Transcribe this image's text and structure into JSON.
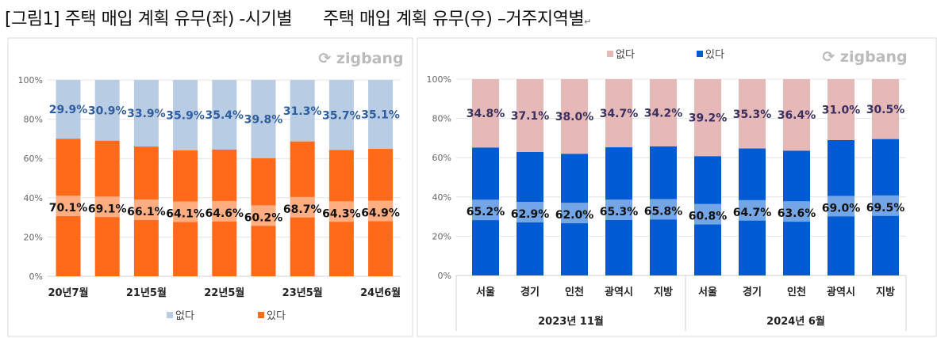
{
  "title": "[그림1] 주택 매입 계획 유무(좌) -시기별      주택 매입 계획 유무(우) –거주지역별",
  "title_mark": "↵",
  "chart_data": [
    {
      "type": "bar",
      "stacked": true,
      "percent": true,
      "watermark": "zigbang",
      "categories": [
        "20년7월",
        "",
        "21년5월",
        "",
        "22년5월",
        "",
        "23년5월",
        "",
        "24년6월"
      ],
      "series": [
        {
          "name": "있다",
          "color": "#ff6a1a",
          "label_color": "#111111",
          "values": [
            70.1,
            69.1,
            66.1,
            64.1,
            64.6,
            60.2,
            68.7,
            64.3,
            64.9
          ]
        },
        {
          "name": "없다",
          "color": "#b8cce4",
          "label_color": "#2e5d9f",
          "values": [
            29.9,
            30.9,
            33.9,
            35.9,
            35.4,
            39.8,
            31.3,
            35.7,
            35.1
          ]
        }
      ],
      "yticks": [
        "0%",
        "20%",
        "40%",
        "60%",
        "80%",
        "100%"
      ],
      "ylim": [
        0,
        100
      ],
      "grid": true,
      "legend": "bottom"
    },
    {
      "type": "bar",
      "stacked": true,
      "percent": true,
      "watermark": "zigbang",
      "categories": [
        "서울",
        "경기",
        "인천",
        "광역시",
        "지방",
        "서울",
        "경기",
        "인천",
        "광역시",
        "지방"
      ],
      "groups": [
        {
          "label": "2023년 11월",
          "count": 5
        },
        {
          "label": "2024년 6월",
          "count": 5
        }
      ],
      "series": [
        {
          "name": "있다",
          "color": "#005bd3",
          "label_color": "#111111",
          "values": [
            65.2,
            62.9,
            62.0,
            65.3,
            65.8,
            60.8,
            64.7,
            63.6,
            69.0,
            69.5
          ]
        },
        {
          "name": "없다",
          "color": "#e6b9b8",
          "label_color": "#3a3060",
          "values": [
            34.8,
            37.1,
            38.0,
            34.7,
            34.2,
            39.2,
            35.3,
            36.4,
            31.0,
            30.5
          ]
        }
      ],
      "yticks": [
        "0%",
        "20%",
        "40%",
        "60%",
        "80%",
        "100%"
      ],
      "ylim": [
        0,
        100
      ],
      "grid": true,
      "legend": "top"
    }
  ]
}
